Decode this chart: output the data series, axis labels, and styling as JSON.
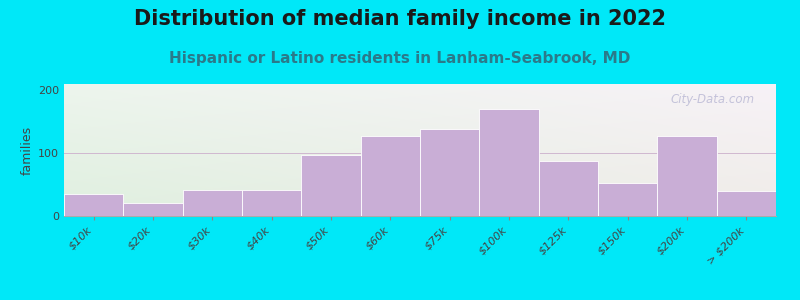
{
  "title": "Distribution of median family income in 2022",
  "subtitle": "Hispanic or Latino residents in Lanham-Seabrook, MD",
  "ylabel": "families",
  "background_outer": "#00e8f8",
  "bar_color": "#c9aed6",
  "bar_edge_color": "#ffffff",
  "categories": [
    "$10k",
    "$20k",
    "$30k",
    "$40k",
    "$50k",
    "$60k",
    "$75k",
    "$100k",
    "$125k",
    "$150k",
    "$200k",
    "> $200k"
  ],
  "values": [
    35,
    20,
    42,
    42,
    97,
    127,
    138,
    170,
    88,
    52,
    127,
    40
  ],
  "ylim": [
    0,
    210
  ],
  "yticks": [
    0,
    100,
    200
  ],
  "title_fontsize": 15,
  "subtitle_fontsize": 11,
  "ylabel_fontsize": 9,
  "tick_label_fontsize": 8,
  "watermark": "City-Data.com",
  "bg_left_color": "#e0f0e0",
  "bg_right_color": "#f5f0f8"
}
